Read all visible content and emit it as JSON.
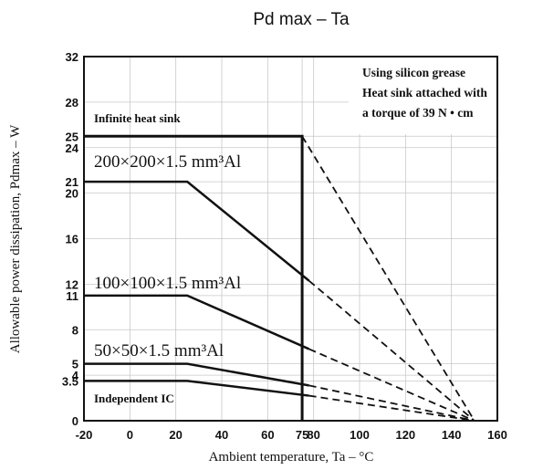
{
  "chart_data": {
    "type": "line",
    "title": "Pd max – Ta",
    "xlabel": "Ambient temperature, Ta – °C",
    "ylabel": "Allowable power dissipation, Pdmax – W",
    "xlim": [
      -20,
      160
    ],
    "ylim": [
      0,
      32
    ],
    "x_ticks": [
      {
        "value": -20,
        "label": "-20"
      },
      {
        "value": 0,
        "label": "0"
      },
      {
        "value": 20,
        "label": "20"
      },
      {
        "value": 40,
        "label": "40"
      },
      {
        "value": 60,
        "label": "60"
      },
      {
        "value": 75,
        "label": "75"
      },
      {
        "value": 80,
        "label": "80"
      },
      {
        "value": 100,
        "label": "100"
      },
      {
        "value": 120,
        "label": "120"
      },
      {
        "value": 140,
        "label": "140"
      },
      {
        "value": 160,
        "label": "160"
      }
    ],
    "y_ticks": [
      {
        "value": 0,
        "label": "0"
      },
      {
        "value": 3.5,
        "label": "3.5"
      },
      {
        "value": 4,
        "label": "4"
      },
      {
        "value": 5,
        "label": "5"
      },
      {
        "value": 8,
        "label": "8"
      },
      {
        "value": 11,
        "label": "11"
      },
      {
        "value": 12,
        "label": "12"
      },
      {
        "value": 16,
        "label": "16"
      },
      {
        "value": 20,
        "label": "20"
      },
      {
        "value": 21,
        "label": "21"
      },
      {
        "value": 24,
        "label": "24"
      },
      {
        "value": 25,
        "label": "25"
      },
      {
        "value": 28,
        "label": "28"
      },
      {
        "value": 32,
        "label": "32"
      }
    ],
    "grid": true,
    "series": [
      {
        "name": "Infinite heat sink",
        "solid": [
          [
            -20,
            25
          ],
          [
            75,
            25
          ],
          [
            75,
            0
          ]
        ],
        "dashed": [
          [
            75,
            25
          ],
          [
            150,
            0
          ]
        ]
      },
      {
        "name": "200×200×1.5 mm³Al",
        "solid": [
          [
            -20,
            21
          ],
          [
            25,
            21
          ],
          [
            78,
            12.3
          ]
        ],
        "dashed": [
          [
            78,
            12.3
          ],
          [
            150,
            0
          ]
        ]
      },
      {
        "name": "100×100×1.5 mm³Al",
        "solid": [
          [
            -20,
            11
          ],
          [
            25,
            11
          ],
          [
            78,
            6.3
          ]
        ],
        "dashed": [
          [
            78,
            6.3
          ],
          [
            150,
            0
          ]
        ]
      },
      {
        "name": "50×50×1.5 mm³Al",
        "solid": [
          [
            -20,
            5
          ],
          [
            25,
            5
          ],
          [
            78,
            3.1
          ]
        ],
        "dashed": [
          [
            78,
            3.1
          ],
          [
            150,
            0
          ]
        ]
      },
      {
        "name": "Independent IC",
        "solid": [
          [
            -20,
            3.5
          ],
          [
            25,
            3.5
          ],
          [
            78,
            2.2
          ]
        ],
        "dashed": [
          [
            78,
            2.2
          ],
          [
            150,
            0
          ]
        ]
      }
    ],
    "annotations": [
      "Using silicon grease",
      "Heat sink attached with",
      "a torque of 39 N • cm"
    ]
  }
}
